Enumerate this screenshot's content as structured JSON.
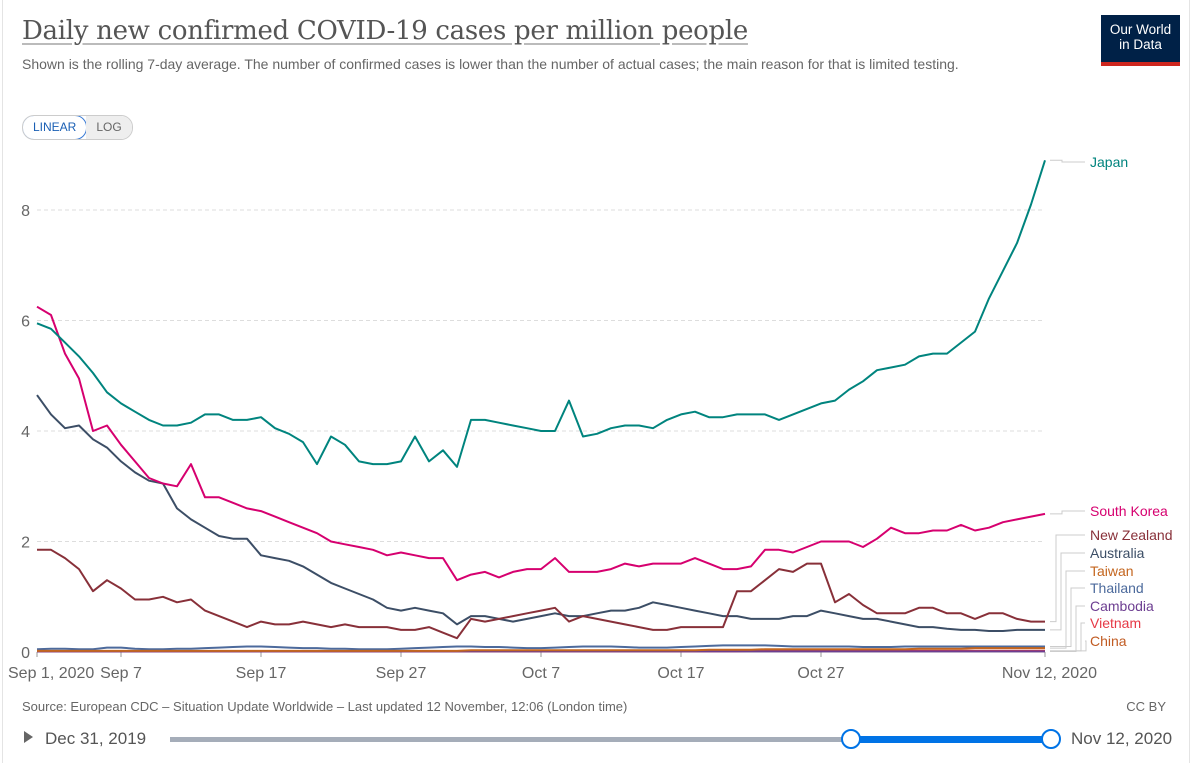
{
  "header": {
    "title": "Daily new confirmed COVID-19 cases per million people",
    "subtitle": "Shown is the rolling 7-day average. The number of confirmed cases is lower than the number of actual cases; the main reason for that is limited testing.",
    "logo_line1": "Our World",
    "logo_line2": "in Data",
    "scale_linear": "LINEAR",
    "scale_log": "LOG"
  },
  "footer": {
    "source": "Source: European CDC – Situation Update Worldwide – Last updated 12 November, 12:06 (London time)",
    "license": "CC BY"
  },
  "timeline": {
    "start_label": "Dec 31, 2019",
    "end_label": "Nov 12, 2020",
    "selected_start_fraction": 0.77,
    "selected_end_fraction": 1.0
  },
  "chart_data": {
    "type": "line",
    "title": "Daily new confirmed COVID-19 cases per million people",
    "xlabel": "",
    "ylabel": "",
    "x_start": "Sep 1, 2020",
    "x_end": "Nov 12, 2020",
    "xlim": [
      0,
      72
    ],
    "ylim": [
      0,
      8.9
    ],
    "x_ticks": [
      {
        "day": 0,
        "label": "Sep 1, 2020"
      },
      {
        "day": 6,
        "label": "Sep 7"
      },
      {
        "day": 16,
        "label": "Sep 17"
      },
      {
        "day": 26,
        "label": "Sep 27"
      },
      {
        "day": 36,
        "label": "Oct 7"
      },
      {
        "day": 46,
        "label": "Oct 17"
      },
      {
        "day": 56,
        "label": "Oct 27"
      },
      {
        "day": 72,
        "label": "Nov 12, 2020"
      }
    ],
    "y_ticks": [
      {
        "value": 0,
        "label": "0"
      },
      {
        "value": 2,
        "label": "2"
      },
      {
        "value": 4,
        "label": "4"
      },
      {
        "value": 6,
        "label": "6"
      },
      {
        "value": 8,
        "label": "8"
      }
    ],
    "grid": true,
    "legend": "right (end labels)",
    "series": [
      {
        "name": "Japan",
        "color": "#00847e",
        "values": [
          5.95,
          5.85,
          5.6,
          5.35,
          5.05,
          4.7,
          4.5,
          4.35,
          4.2,
          4.1,
          4.1,
          4.15,
          4.3,
          4.3,
          4.2,
          4.2,
          4.25,
          4.05,
          3.95,
          3.8,
          3.4,
          3.9,
          3.75,
          3.45,
          3.4,
          3.4,
          3.45,
          3.9,
          3.45,
          3.65,
          3.35,
          4.2,
          4.2,
          4.15,
          4.1,
          4.05,
          4.0,
          4.0,
          4.55,
          3.9,
          3.95,
          4.05,
          4.1,
          4.1,
          4.05,
          4.2,
          4.3,
          4.35,
          4.25,
          4.25,
          4.3,
          4.3,
          4.3,
          4.2,
          4.3,
          4.4,
          4.5,
          4.55,
          4.75,
          4.9,
          5.1,
          5.15,
          5.2,
          5.35,
          5.4,
          5.4,
          5.6,
          5.8,
          6.4,
          6.9,
          7.4,
          8.1,
          8.9
        ]
      },
      {
        "name": "South Korea",
        "color": "#d6006f",
        "values": [
          6.25,
          6.1,
          5.4,
          4.95,
          4.0,
          4.1,
          3.75,
          3.45,
          3.15,
          3.05,
          3.0,
          3.4,
          2.8,
          2.8,
          2.7,
          2.6,
          2.55,
          2.45,
          2.35,
          2.25,
          2.15,
          2.0,
          1.95,
          1.9,
          1.85,
          1.75,
          1.8,
          1.75,
          1.7,
          1.7,
          1.3,
          1.4,
          1.45,
          1.35,
          1.45,
          1.5,
          1.5,
          1.7,
          1.45,
          1.45,
          1.45,
          1.5,
          1.6,
          1.55,
          1.6,
          1.6,
          1.6,
          1.7,
          1.6,
          1.5,
          1.5,
          1.55,
          1.85,
          1.85,
          1.8,
          1.9,
          2.0,
          2.0,
          2.0,
          1.9,
          2.05,
          2.25,
          2.15,
          2.15,
          2.2,
          2.2,
          2.3,
          2.2,
          2.25,
          2.35,
          2.4,
          2.45,
          2.5
        ]
      },
      {
        "name": "New Zealand",
        "color": "#883039",
        "values": [
          1.85,
          1.85,
          1.7,
          1.5,
          1.1,
          1.3,
          1.15,
          0.95,
          0.95,
          1.0,
          0.9,
          0.95,
          0.75,
          0.65,
          0.55,
          0.45,
          0.55,
          0.5,
          0.5,
          0.55,
          0.5,
          0.45,
          0.5,
          0.45,
          0.45,
          0.45,
          0.4,
          0.4,
          0.45,
          0.35,
          0.25,
          0.6,
          0.55,
          0.6,
          0.65,
          0.7,
          0.75,
          0.8,
          0.55,
          0.65,
          0.6,
          0.55,
          0.5,
          0.45,
          0.4,
          0.4,
          0.45,
          0.45,
          0.45,
          0.45,
          1.1,
          1.1,
          1.3,
          1.5,
          1.45,
          1.6,
          1.6,
          0.9,
          1.05,
          0.85,
          0.7,
          0.7,
          0.7,
          0.8,
          0.8,
          0.7,
          0.7,
          0.6,
          0.7,
          0.7,
          0.6,
          0.55,
          0.55
        ]
      },
      {
        "name": "Australia",
        "color": "#3c4e66",
        "values": [
          4.65,
          4.3,
          4.05,
          4.1,
          3.85,
          3.7,
          3.45,
          3.25,
          3.1,
          3.05,
          2.6,
          2.4,
          2.25,
          2.1,
          2.05,
          2.05,
          1.75,
          1.7,
          1.65,
          1.55,
          1.4,
          1.25,
          1.15,
          1.05,
          0.95,
          0.8,
          0.75,
          0.8,
          0.75,
          0.7,
          0.5,
          0.65,
          0.65,
          0.6,
          0.55,
          0.6,
          0.65,
          0.7,
          0.65,
          0.65,
          0.7,
          0.75,
          0.75,
          0.8,
          0.9,
          0.85,
          0.8,
          0.75,
          0.7,
          0.65,
          0.65,
          0.6,
          0.6,
          0.6,
          0.65,
          0.65,
          0.75,
          0.7,
          0.65,
          0.6,
          0.6,
          0.55,
          0.5,
          0.45,
          0.45,
          0.42,
          0.4,
          0.4,
          0.38,
          0.38,
          0.4,
          0.4,
          0.4
        ]
      },
      {
        "name": "Taiwan",
        "color": "#c4661f",
        "values": [
          0.02,
          0.02,
          0.02,
          0.02,
          0.02,
          0.02,
          0.02,
          0.02,
          0.02,
          0.02,
          0.02,
          0.02,
          0.02,
          0.02,
          0.02,
          0.02,
          0.02,
          0.02,
          0.02,
          0.02,
          0.02,
          0.02,
          0.02,
          0.02,
          0.02,
          0.02,
          0.02,
          0.02,
          0.02,
          0.02,
          0.02,
          0.03,
          0.03,
          0.03,
          0.03,
          0.03,
          0.03,
          0.03,
          0.03,
          0.03,
          0.03,
          0.03,
          0.03,
          0.03,
          0.03,
          0.03,
          0.03,
          0.03,
          0.04,
          0.04,
          0.04,
          0.04,
          0.05,
          0.05,
          0.05,
          0.05,
          0.05,
          0.05,
          0.05,
          0.05,
          0.05,
          0.05,
          0.05,
          0.06,
          0.06,
          0.06,
          0.06,
          0.07,
          0.07,
          0.07,
          0.07,
          0.07,
          0.07
        ]
      },
      {
        "name": "Thailand",
        "color": "#4c6a9c",
        "values": [
          0.05,
          0.06,
          0.06,
          0.05,
          0.05,
          0.08,
          0.08,
          0.06,
          0.05,
          0.05,
          0.06,
          0.06,
          0.07,
          0.08,
          0.09,
          0.1,
          0.1,
          0.09,
          0.08,
          0.07,
          0.07,
          0.06,
          0.06,
          0.05,
          0.05,
          0.05,
          0.06,
          0.07,
          0.08,
          0.09,
          0.1,
          0.1,
          0.09,
          0.09,
          0.08,
          0.07,
          0.07,
          0.08,
          0.09,
          0.1,
          0.1,
          0.1,
          0.09,
          0.08,
          0.08,
          0.08,
          0.09,
          0.1,
          0.11,
          0.12,
          0.12,
          0.12,
          0.12,
          0.11,
          0.1,
          0.1,
          0.1,
          0.1,
          0.1,
          0.09,
          0.09,
          0.09,
          0.1,
          0.1,
          0.1,
          0.1,
          0.1,
          0.1,
          0.1,
          0.1,
          0.1,
          0.1,
          0.1
        ]
      },
      {
        "name": "Cambodia",
        "color": "#6d3e91",
        "values": [
          0.01,
          0.01,
          0.01,
          0.01,
          0.01,
          0.01,
          0.01,
          0.01,
          0.01,
          0.01,
          0.01,
          0.01,
          0.01,
          0.01,
          0.01,
          0.01,
          0.01,
          0.01,
          0.01,
          0.01,
          0.01,
          0.01,
          0.01,
          0.01,
          0.01,
          0.01,
          0.01,
          0.01,
          0.01,
          0.01,
          0.01,
          0.01,
          0.01,
          0.01,
          0.01,
          0.01,
          0.01,
          0.01,
          0.01,
          0.01,
          0.01,
          0.01,
          0.01,
          0.01,
          0.01,
          0.01,
          0.01,
          0.01,
          0.01,
          0.01,
          0.01,
          0.01,
          0.01,
          0.01,
          0.01,
          0.01,
          0.01,
          0.01,
          0.01,
          0.01,
          0.01,
          0.01,
          0.01,
          0.01,
          0.01,
          0.01,
          0.01,
          0.01,
          0.01,
          0.01,
          0.01,
          0.01,
          0.01
        ]
      },
      {
        "name": "Vietnam",
        "color": "#e63946",
        "values": [
          0.01,
          0.01,
          0.01,
          0.01,
          0.01,
          0.01,
          0.01,
          0.01,
          0.01,
          0.01,
          0.01,
          0.01,
          0.01,
          0.01,
          0.01,
          0.01,
          0.01,
          0.01,
          0.01,
          0.01,
          0.01,
          0.01,
          0.01,
          0.01,
          0.01,
          0.01,
          0.01,
          0.01,
          0.01,
          0.01,
          0.01,
          0.01,
          0.01,
          0.01,
          0.01,
          0.01,
          0.01,
          0.01,
          0.01,
          0.01,
          0.01,
          0.01,
          0.01,
          0.01,
          0.01,
          0.01,
          0.01,
          0.01,
          0.01,
          0.01,
          0.01,
          0.02,
          0.02,
          0.02,
          0.02,
          0.02,
          0.02,
          0.02,
          0.02,
          0.02,
          0.02,
          0.02,
          0.02,
          0.02,
          0.02,
          0.02,
          0.02,
          0.02,
          0.02,
          0.02,
          0.02,
          0.02,
          0.02
        ]
      },
      {
        "name": "China",
        "color": "#c15b22",
        "values": [
          0.01,
          0.01,
          0.01,
          0.01,
          0.01,
          0.01,
          0.01,
          0.01,
          0.01,
          0.01,
          0.01,
          0.01,
          0.01,
          0.01,
          0.01,
          0.01,
          0.01,
          0.01,
          0.01,
          0.01,
          0.01,
          0.01,
          0.01,
          0.01,
          0.01,
          0.01,
          0.01,
          0.01,
          0.01,
          0.01,
          0.01,
          0.01,
          0.01,
          0.01,
          0.01,
          0.01,
          0.01,
          0.01,
          0.01,
          0.01,
          0.01,
          0.01,
          0.01,
          0.01,
          0.01,
          0.01,
          0.01,
          0.01,
          0.01,
          0.02,
          0.02,
          0.02,
          0.02,
          0.02,
          0.02,
          0.02,
          0.02,
          0.02,
          0.02,
          0.02,
          0.02,
          0.02,
          0.02,
          0.02,
          0.02,
          0.02,
          0.02,
          0.02,
          0.02,
          0.02,
          0.02,
          0.02,
          0.02
        ]
      }
    ]
  }
}
